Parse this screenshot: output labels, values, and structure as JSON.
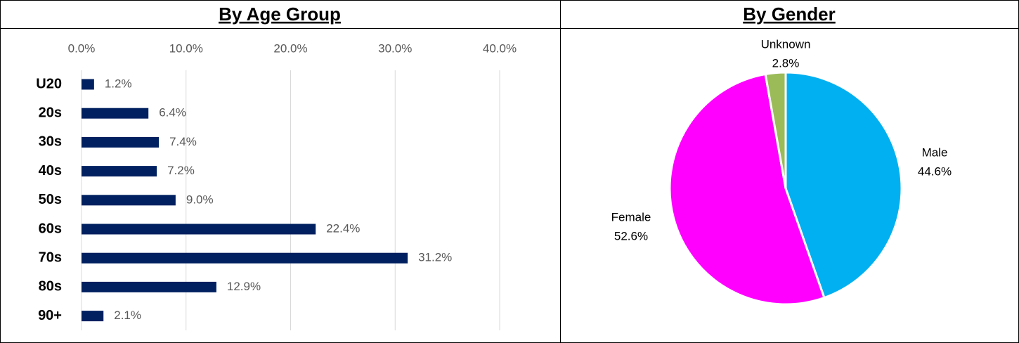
{
  "chart_data": [
    {
      "type": "hbar",
      "title": "By Age Group",
      "categories": [
        "U20",
        "20s",
        "30s",
        "40s",
        "50s",
        "60s",
        "70s",
        "80s",
        "90+"
      ],
      "values": [
        1.2,
        6.4,
        7.4,
        7.2,
        9.0,
        22.4,
        31.2,
        12.9,
        2.1
      ],
      "value_labels": [
        "1.2%",
        "6.4%",
        "7.4%",
        "7.2%",
        "9.0%",
        "22.4%",
        "31.2%",
        "12.9%",
        "2.1%"
      ],
      "color": "#002060",
      "xlim": [
        0,
        40
      ],
      "xticks": [
        {
          "value": 0,
          "label": "0.0%"
        },
        {
          "value": 10,
          "label": "10.0%"
        },
        {
          "value": 20,
          "label": "20.0%"
        },
        {
          "value": 30,
          "label": "30.0%"
        },
        {
          "value": 40,
          "label": "40.0%"
        }
      ],
      "grid": true
    },
    {
      "type": "pie",
      "title": "By Gender",
      "categories": [
        "Male",
        "Female",
        "Unknown"
      ],
      "values": [
        44.6,
        52.6,
        2.8
      ],
      "value_labels": [
        "44.6%",
        "52.6%",
        "2.8%"
      ],
      "colors": [
        "#00b0f0",
        "#ff00ff",
        "#9bbb59"
      ]
    }
  ]
}
